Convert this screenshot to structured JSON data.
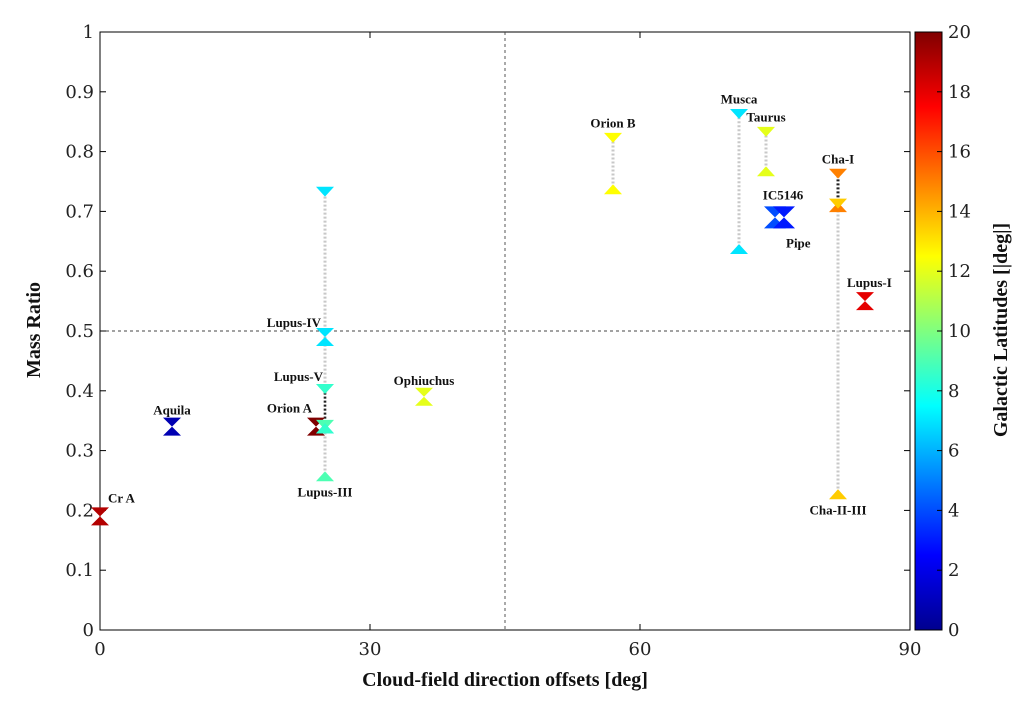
{
  "chart_data": {
    "type": "scatter",
    "xlabel": "Cloud-field direction offsets [deg]",
    "ylabel": "Mass Ratio",
    "xlim": [
      0,
      90
    ],
    "ylim": [
      0,
      1
    ],
    "xticks": [
      "0",
      "30",
      "60",
      "90"
    ],
    "xtick_values": [
      0,
      30,
      60,
      90
    ],
    "yticks": [
      "0",
      "0.1",
      "0.2",
      "0.3",
      "0.4",
      "0.5",
      "0.6",
      "0.7",
      "0.8",
      "0.9",
      "1"
    ],
    "ytick_values": [
      0,
      0.1,
      0.2,
      0.3,
      0.4,
      0.5,
      0.6,
      0.7,
      0.8,
      0.9,
      1
    ],
    "reference_lines": {
      "x": 45,
      "y": 0.5
    },
    "colorbar": {
      "label": "Galactic Latitudes [|deg|]",
      "range": [
        0,
        20
      ],
      "ticks": [
        "0",
        "2",
        "4",
        "6",
        "8",
        "10",
        "12",
        "14",
        "16",
        "18",
        "20"
      ],
      "tick_values": [
        0,
        2,
        4,
        6,
        8,
        10,
        12,
        14,
        16,
        18,
        20
      ]
    },
    "clouds": [
      {
        "name": "Cr A",
        "x": 0,
        "y": 0.19,
        "lat": 19,
        "range": null,
        "label_pos": "upper-right"
      },
      {
        "name": "Aquila",
        "x": 8,
        "y": 0.34,
        "lat": 1,
        "range": null,
        "label_pos": "above"
      },
      {
        "name": "Orion A",
        "x": 24,
        "y": 0.34,
        "lat": 20,
        "range": null,
        "label_pos": "upper-left"
      },
      {
        "name": "Lupus-III",
        "x": 25,
        "y": 0.3,
        "lat": 9,
        "range": [
          0.26,
          0.34
        ],
        "label_pos": "below"
      },
      {
        "name": "Lupus-IV",
        "x": 25,
        "y": 0.49,
        "lat": 7,
        "range": [
          0.34,
          0.73
        ],
        "label_pos": "upper-left"
      },
      {
        "name": "Lupus-V",
        "x": 25,
        "y": 0.4,
        "lat": 8.5,
        "range": [
          0.34,
          0.4
        ],
        "label_pos": "upper-left"
      },
      {
        "name": "Ophiuchus",
        "x": 36,
        "y": 0.39,
        "lat": 12,
        "range": null,
        "label_pos": "above"
      },
      {
        "name": "Orion B",
        "x": 57,
        "y": 0.78,
        "lat": 12.5,
        "range": [
          0.74,
          0.82
        ],
        "label_pos": "above"
      },
      {
        "name": "Musca",
        "x": 71,
        "y": 0.75,
        "lat": 7,
        "range": [
          0.64,
          0.86
        ],
        "label_pos": "above"
      },
      {
        "name": "Taurus",
        "x": 74,
        "y": 0.79,
        "lat": 12,
        "range": [
          0.77,
          0.83
        ],
        "label_pos": "above"
      },
      {
        "name": "IC5146",
        "x": 75,
        "y": 0.69,
        "lat": 4,
        "range": null,
        "label_pos": "above"
      },
      {
        "name": "Pipe",
        "x": 76,
        "y": 0.69,
        "lat": 3,
        "range": null,
        "label_pos": "lower-right"
      },
      {
        "name": "Cha-I",
        "x": 82,
        "y": 0.74,
        "lat": 15,
        "range": [
          0.71,
          0.76
        ],
        "label_pos": "above"
      },
      {
        "name": "Cha-II-III",
        "x": 82,
        "y": 0.23,
        "lat": 13.5,
        "range": [
          0.23,
          0.71
        ],
        "label_pos": "below"
      },
      {
        "name": "Lupus-I",
        "x": 85,
        "y": 0.55,
        "lat": 18,
        "range": null,
        "label_pos": "upper-right"
      }
    ]
  }
}
